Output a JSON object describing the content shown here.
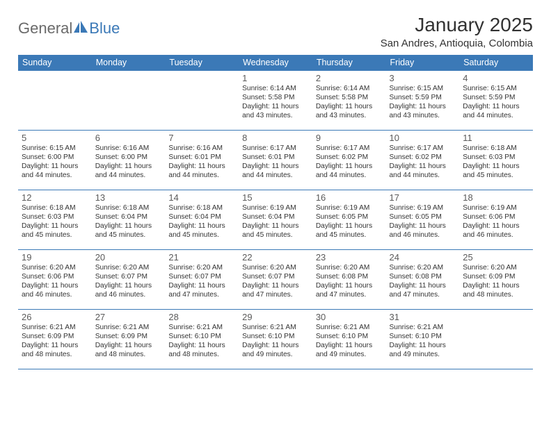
{
  "brand": {
    "word1": "General",
    "word2": "Blue"
  },
  "title": "January 2025",
  "location": "San Andres, Antioquia, Colombia",
  "colors": {
    "header_bg": "#3b79b7",
    "header_text": "#ffffff",
    "border": "#3b79b7",
    "page_bg": "#ffffff",
    "title_text": "#323232",
    "body_text": "#333333",
    "logo_gray": "#6a6a6a",
    "logo_blue": "#3b79b7"
  },
  "typography": {
    "title_fontsize": 28,
    "location_fontsize": 15,
    "header_fontsize": 12.5,
    "daynum_fontsize": 13,
    "body_fontsize": 10.2
  },
  "day_headers": [
    "Sunday",
    "Monday",
    "Tuesday",
    "Wednesday",
    "Thursday",
    "Friday",
    "Saturday"
  ],
  "weeks": [
    [
      {
        "day": "",
        "lines": [
          "",
          "",
          "",
          ""
        ]
      },
      {
        "day": "",
        "lines": [
          "",
          "",
          "",
          ""
        ]
      },
      {
        "day": "",
        "lines": [
          "",
          "",
          "",
          ""
        ]
      },
      {
        "day": "1",
        "lines": [
          "Sunrise: 6:14 AM",
          "Sunset: 5:58 PM",
          "Daylight: 11 hours",
          "and 43 minutes."
        ]
      },
      {
        "day": "2",
        "lines": [
          "Sunrise: 6:14 AM",
          "Sunset: 5:58 PM",
          "Daylight: 11 hours",
          "and 43 minutes."
        ]
      },
      {
        "day": "3",
        "lines": [
          "Sunrise: 6:15 AM",
          "Sunset: 5:59 PM",
          "Daylight: 11 hours",
          "and 43 minutes."
        ]
      },
      {
        "day": "4",
        "lines": [
          "Sunrise: 6:15 AM",
          "Sunset: 5:59 PM",
          "Daylight: 11 hours",
          "and 44 minutes."
        ]
      }
    ],
    [
      {
        "day": "5",
        "lines": [
          "Sunrise: 6:15 AM",
          "Sunset: 6:00 PM",
          "Daylight: 11 hours",
          "and 44 minutes."
        ]
      },
      {
        "day": "6",
        "lines": [
          "Sunrise: 6:16 AM",
          "Sunset: 6:00 PM",
          "Daylight: 11 hours",
          "and 44 minutes."
        ]
      },
      {
        "day": "7",
        "lines": [
          "Sunrise: 6:16 AM",
          "Sunset: 6:01 PM",
          "Daylight: 11 hours",
          "and 44 minutes."
        ]
      },
      {
        "day": "8",
        "lines": [
          "Sunrise: 6:17 AM",
          "Sunset: 6:01 PM",
          "Daylight: 11 hours",
          "and 44 minutes."
        ]
      },
      {
        "day": "9",
        "lines": [
          "Sunrise: 6:17 AM",
          "Sunset: 6:02 PM",
          "Daylight: 11 hours",
          "and 44 minutes."
        ]
      },
      {
        "day": "10",
        "lines": [
          "Sunrise: 6:17 AM",
          "Sunset: 6:02 PM",
          "Daylight: 11 hours",
          "and 44 minutes."
        ]
      },
      {
        "day": "11",
        "lines": [
          "Sunrise: 6:18 AM",
          "Sunset: 6:03 PM",
          "Daylight: 11 hours",
          "and 45 minutes."
        ]
      }
    ],
    [
      {
        "day": "12",
        "lines": [
          "Sunrise: 6:18 AM",
          "Sunset: 6:03 PM",
          "Daylight: 11 hours",
          "and 45 minutes."
        ]
      },
      {
        "day": "13",
        "lines": [
          "Sunrise: 6:18 AM",
          "Sunset: 6:04 PM",
          "Daylight: 11 hours",
          "and 45 minutes."
        ]
      },
      {
        "day": "14",
        "lines": [
          "Sunrise: 6:18 AM",
          "Sunset: 6:04 PM",
          "Daylight: 11 hours",
          "and 45 minutes."
        ]
      },
      {
        "day": "15",
        "lines": [
          "Sunrise: 6:19 AM",
          "Sunset: 6:04 PM",
          "Daylight: 11 hours",
          "and 45 minutes."
        ]
      },
      {
        "day": "16",
        "lines": [
          "Sunrise: 6:19 AM",
          "Sunset: 6:05 PM",
          "Daylight: 11 hours",
          "and 45 minutes."
        ]
      },
      {
        "day": "17",
        "lines": [
          "Sunrise: 6:19 AM",
          "Sunset: 6:05 PM",
          "Daylight: 11 hours",
          "and 46 minutes."
        ]
      },
      {
        "day": "18",
        "lines": [
          "Sunrise: 6:19 AM",
          "Sunset: 6:06 PM",
          "Daylight: 11 hours",
          "and 46 minutes."
        ]
      }
    ],
    [
      {
        "day": "19",
        "lines": [
          "Sunrise: 6:20 AM",
          "Sunset: 6:06 PM",
          "Daylight: 11 hours",
          "and 46 minutes."
        ]
      },
      {
        "day": "20",
        "lines": [
          "Sunrise: 6:20 AM",
          "Sunset: 6:07 PM",
          "Daylight: 11 hours",
          "and 46 minutes."
        ]
      },
      {
        "day": "21",
        "lines": [
          "Sunrise: 6:20 AM",
          "Sunset: 6:07 PM",
          "Daylight: 11 hours",
          "and 47 minutes."
        ]
      },
      {
        "day": "22",
        "lines": [
          "Sunrise: 6:20 AM",
          "Sunset: 6:07 PM",
          "Daylight: 11 hours",
          "and 47 minutes."
        ]
      },
      {
        "day": "23",
        "lines": [
          "Sunrise: 6:20 AM",
          "Sunset: 6:08 PM",
          "Daylight: 11 hours",
          "and 47 minutes."
        ]
      },
      {
        "day": "24",
        "lines": [
          "Sunrise: 6:20 AM",
          "Sunset: 6:08 PM",
          "Daylight: 11 hours",
          "and 47 minutes."
        ]
      },
      {
        "day": "25",
        "lines": [
          "Sunrise: 6:20 AM",
          "Sunset: 6:09 PM",
          "Daylight: 11 hours",
          "and 48 minutes."
        ]
      }
    ],
    [
      {
        "day": "26",
        "lines": [
          "Sunrise: 6:21 AM",
          "Sunset: 6:09 PM",
          "Daylight: 11 hours",
          "and 48 minutes."
        ]
      },
      {
        "day": "27",
        "lines": [
          "Sunrise: 6:21 AM",
          "Sunset: 6:09 PM",
          "Daylight: 11 hours",
          "and 48 minutes."
        ]
      },
      {
        "day": "28",
        "lines": [
          "Sunrise: 6:21 AM",
          "Sunset: 6:10 PM",
          "Daylight: 11 hours",
          "and 48 minutes."
        ]
      },
      {
        "day": "29",
        "lines": [
          "Sunrise: 6:21 AM",
          "Sunset: 6:10 PM",
          "Daylight: 11 hours",
          "and 49 minutes."
        ]
      },
      {
        "day": "30",
        "lines": [
          "Sunrise: 6:21 AM",
          "Sunset: 6:10 PM",
          "Daylight: 11 hours",
          "and 49 minutes."
        ]
      },
      {
        "day": "31",
        "lines": [
          "Sunrise: 6:21 AM",
          "Sunset: 6:10 PM",
          "Daylight: 11 hours",
          "and 49 minutes."
        ]
      },
      {
        "day": "",
        "lines": [
          "",
          "",
          "",
          ""
        ]
      }
    ]
  ]
}
